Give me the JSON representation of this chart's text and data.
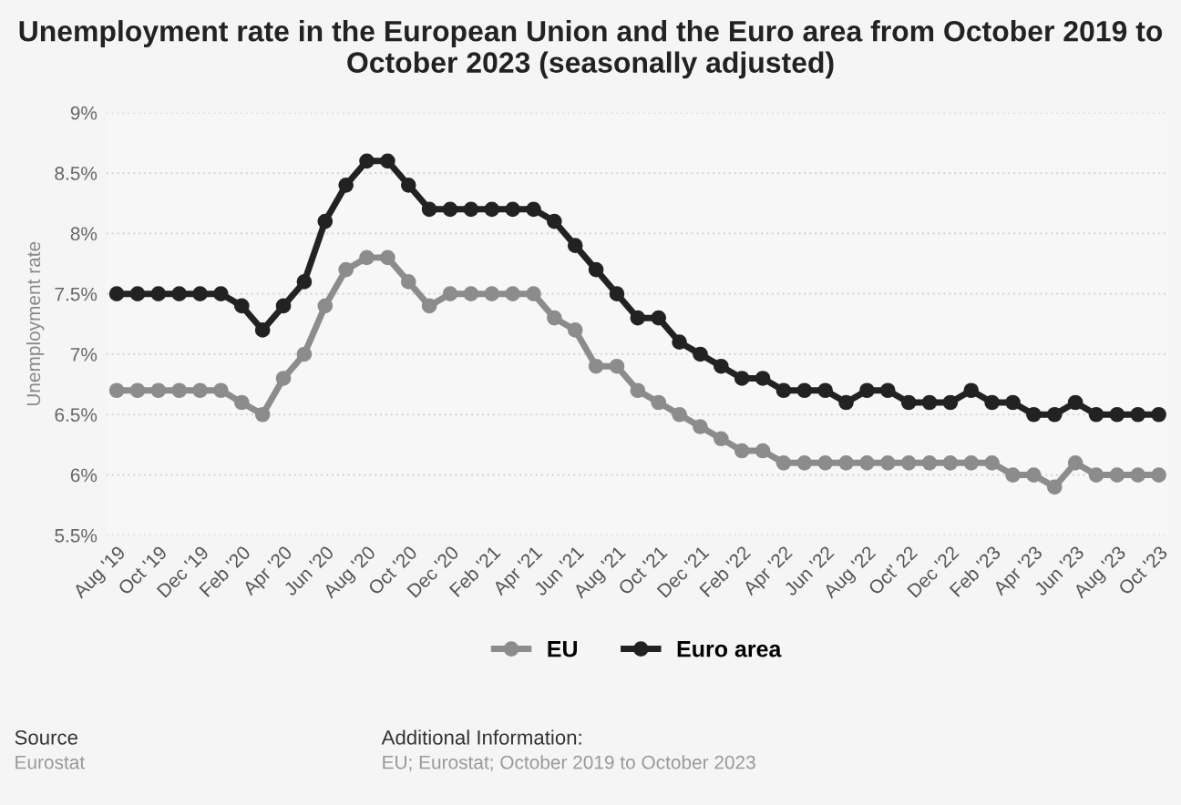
{
  "chart_data": {
    "type": "line",
    "title": "Unemployment rate in the European Union and the Euro area from October 2019 to October 2023 (seasonally adjusted)",
    "ylabel": "Unemployment rate",
    "categories": [
      "Aug '19",
      null,
      "Oct '19",
      null,
      "Dec '19",
      null,
      "Feb '20",
      null,
      "Apr '20",
      null,
      "Jun '20",
      null,
      "Aug '20",
      null,
      "Oct '20",
      null,
      "Dec '20",
      null,
      "Feb '21",
      null,
      "Apr '21",
      null,
      "Jun '21",
      null,
      "Aug '21",
      null,
      "Oct '21",
      null,
      "Dec '21",
      null,
      "Feb '22",
      null,
      "Apr '22",
      null,
      "Jun '22",
      null,
      "Aug '22",
      null,
      "Oct' 22",
      null,
      "Dec '22",
      null,
      "Feb '23",
      null,
      "Apr '23",
      null,
      "Jun '23",
      null,
      "Aug '23",
      null,
      "Oct '23"
    ],
    "series": [
      {
        "name": "EU",
        "color": "#8c8c8c",
        "values": [
          6.7,
          6.7,
          6.7,
          6.7,
          6.7,
          6.7,
          6.6,
          6.5,
          6.8,
          7.0,
          7.4,
          7.7,
          7.8,
          7.8,
          7.6,
          7.4,
          7.5,
          7.5,
          7.5,
          7.5,
          7.5,
          7.3,
          7.2,
          6.9,
          6.9,
          6.7,
          6.6,
          6.5,
          6.4,
          6.3,
          6.2,
          6.2,
          6.1,
          6.1,
          6.1,
          6.1,
          6.1,
          6.1,
          6.1,
          6.1,
          6.1,
          6.1,
          6.1,
          6.0,
          6.0,
          5.9,
          6.1,
          6.0,
          6.0,
          6.0,
          6.0
        ]
      },
      {
        "name": "Euro area",
        "color": "#222222",
        "values": [
          7.5,
          7.5,
          7.5,
          7.5,
          7.5,
          7.5,
          7.4,
          7.2,
          7.4,
          7.6,
          8.1,
          8.4,
          8.6,
          8.6,
          8.4,
          8.2,
          8.2,
          8.2,
          8.2,
          8.2,
          8.2,
          8.1,
          7.9,
          7.7,
          7.5,
          7.3,
          7.3,
          7.1,
          7.0,
          6.9,
          6.8,
          6.8,
          6.7,
          6.7,
          6.7,
          6.6,
          6.7,
          6.7,
          6.6,
          6.6,
          6.6,
          6.7,
          6.6,
          6.6,
          6.5,
          6.5,
          6.6,
          6.5,
          6.5,
          6.5,
          6.5
        ]
      }
    ],
    "ylim": [
      5.5,
      9
    ],
    "yticks": [
      {
        "value": 5.5,
        "label": "5.5%"
      },
      {
        "value": 6,
        "label": "6%"
      },
      {
        "value": 6.5,
        "label": "6.5%"
      },
      {
        "value": 7,
        "label": "7%"
      },
      {
        "value": 7.5,
        "label": "7.5%"
      },
      {
        "value": 8,
        "label": "8%"
      },
      {
        "value": 8.5,
        "label": "8.5%"
      },
      {
        "value": 9,
        "label": "9%"
      }
    ],
    "grid": "y",
    "legend": "bottom",
    "marker": "circle",
    "line_style": "solid",
    "annotations": [
      "Source",
      "Eurostat",
      "Additional Information:",
      "EU; Eurostat; October 2019 to October 2023"
    ]
  }
}
